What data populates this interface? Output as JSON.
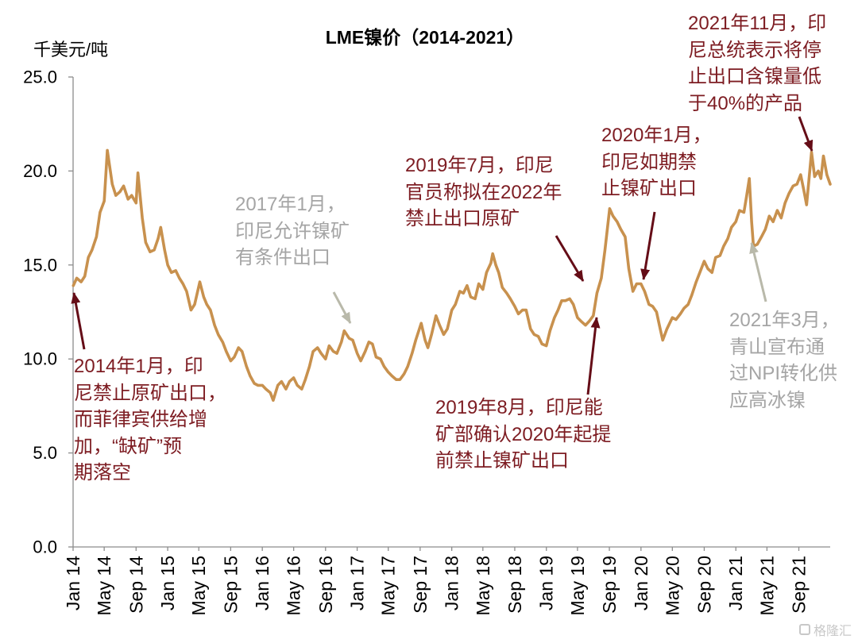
{
  "chart_data": {
    "type": "line",
    "title": "LME镍价（2014-2021）",
    "ylabel": "千美元/吨",
    "xlabel": "",
    "ylim": [
      0,
      25
    ],
    "xlim": [
      "2014-01-01",
      "2021-12-31"
    ],
    "grid": false,
    "yticks": [
      0,
      5,
      10,
      15,
      20,
      25
    ],
    "ytick_labels": [
      "0.0",
      "5.0",
      "10.0",
      "15.0",
      "20.0",
      "25.0"
    ],
    "xticks": [
      {
        "date": "2014-01-01",
        "label": "Jan 14"
      },
      {
        "date": "2014-05-01",
        "label": "May 14"
      },
      {
        "date": "2014-09-01",
        "label": "Sep 14"
      },
      {
        "date": "2015-01-01",
        "label": "Jan 15"
      },
      {
        "date": "2015-05-01",
        "label": "May 15"
      },
      {
        "date": "2015-09-01",
        "label": "Sep 15"
      },
      {
        "date": "2016-01-01",
        "label": "Jan 16"
      },
      {
        "date": "2016-05-01",
        "label": "May 16"
      },
      {
        "date": "2016-09-01",
        "label": "Sep 16"
      },
      {
        "date": "2017-01-01",
        "label": "Jan 17"
      },
      {
        "date": "2017-05-01",
        "label": "May 17"
      },
      {
        "date": "2017-09-01",
        "label": "Sep 17"
      },
      {
        "date": "2018-01-01",
        "label": "Jan 18"
      },
      {
        "date": "2018-05-01",
        "label": "May 18"
      },
      {
        "date": "2018-09-01",
        "label": "Sep 18"
      },
      {
        "date": "2019-01-01",
        "label": "Jan 19"
      },
      {
        "date": "2019-05-01",
        "label": "May 19"
      },
      {
        "date": "2019-09-01",
        "label": "Sep 19"
      },
      {
        "date": "2020-01-01",
        "label": "Jan 20"
      },
      {
        "date": "2020-05-01",
        "label": "May 20"
      },
      {
        "date": "2020-09-01",
        "label": "Sep 20"
      },
      {
        "date": "2021-01-01",
        "label": "Jan 21"
      },
      {
        "date": "2021-05-01",
        "label": "May 21"
      },
      {
        "date": "2021-09-01",
        "label": "Sep 21"
      }
    ],
    "series": [
      {
        "color": "#C8914E",
        "points": [
          [
            "2014-01-02",
            13.9
          ],
          [
            "2014-01-15",
            14.3
          ],
          [
            "2014-02-01",
            14.1
          ],
          [
            "2014-02-15",
            14.4
          ],
          [
            "2014-03-01",
            15.4
          ],
          [
            "2014-03-15",
            15.8
          ],
          [
            "2014-04-01",
            16.5
          ],
          [
            "2014-04-15",
            17.8
          ],
          [
            "2014-05-01",
            18.4
          ],
          [
            "2014-05-13",
            21.1
          ],
          [
            "2014-06-01",
            19.3
          ],
          [
            "2014-06-15",
            18.7
          ],
          [
            "2014-07-01",
            18.9
          ],
          [
            "2014-07-15",
            19.2
          ],
          [
            "2014-08-01",
            18.5
          ],
          [
            "2014-08-15",
            18.7
          ],
          [
            "2014-09-01",
            18.3
          ],
          [
            "2014-09-08",
            19.9
          ],
          [
            "2014-09-25",
            17.5
          ],
          [
            "2014-10-08",
            16.2
          ],
          [
            "2014-10-25",
            15.7
          ],
          [
            "2014-11-10",
            15.8
          ],
          [
            "2014-11-25",
            16.4
          ],
          [
            "2014-12-05",
            17.0
          ],
          [
            "2014-12-20",
            15.8
          ],
          [
            "2015-01-01",
            15.0
          ],
          [
            "2015-01-15",
            14.6
          ],
          [
            "2015-02-01",
            14.7
          ],
          [
            "2015-02-15",
            14.3
          ],
          [
            "2015-03-01",
            14.0
          ],
          [
            "2015-03-15",
            13.6
          ],
          [
            "2015-04-01",
            12.6
          ],
          [
            "2015-04-15",
            12.9
          ],
          [
            "2015-05-05",
            14.1
          ],
          [
            "2015-05-20",
            13.3
          ],
          [
            "2015-06-01",
            12.9
          ],
          [
            "2015-06-15",
            12.6
          ],
          [
            "2015-07-01",
            11.8
          ],
          [
            "2015-07-15",
            11.3
          ],
          [
            "2015-08-01",
            10.9
          ],
          [
            "2015-08-15",
            10.4
          ],
          [
            "2015-09-01",
            9.9
          ],
          [
            "2015-09-15",
            10.1
          ],
          [
            "2015-10-01",
            10.6
          ],
          [
            "2015-10-15",
            10.4
          ],
          [
            "2015-11-01",
            9.6
          ],
          [
            "2015-11-15",
            9.1
          ],
          [
            "2015-12-01",
            8.7
          ],
          [
            "2015-12-15",
            8.6
          ],
          [
            "2016-01-01",
            8.6
          ],
          [
            "2016-01-15",
            8.4
          ],
          [
            "2016-02-01",
            8.2
          ],
          [
            "2016-02-12",
            7.8
          ],
          [
            "2016-03-01",
            8.6
          ],
          [
            "2016-03-15",
            8.8
          ],
          [
            "2016-04-01",
            8.4
          ],
          [
            "2016-04-15",
            8.8
          ],
          [
            "2016-05-01",
            9.0
          ],
          [
            "2016-05-15",
            8.6
          ],
          [
            "2016-06-01",
            8.4
          ],
          [
            "2016-06-15",
            8.9
          ],
          [
            "2016-07-01",
            9.6
          ],
          [
            "2016-07-15",
            10.4
          ],
          [
            "2016-08-01",
            10.6
          ],
          [
            "2016-08-15",
            10.3
          ],
          [
            "2016-09-01",
            10.0
          ],
          [
            "2016-09-15",
            10.7
          ],
          [
            "2016-10-01",
            10.4
          ],
          [
            "2016-10-15",
            10.3
          ],
          [
            "2016-11-01",
            10.9
          ],
          [
            "2016-11-12",
            11.5
          ],
          [
            "2016-12-01",
            11.1
          ],
          [
            "2016-12-15",
            11.0
          ],
          [
            "2017-01-01",
            10.3
          ],
          [
            "2017-01-15",
            9.9
          ],
          [
            "2017-02-01",
            10.4
          ],
          [
            "2017-02-15",
            10.9
          ],
          [
            "2017-03-01",
            10.8
          ],
          [
            "2017-03-15",
            10.1
          ],
          [
            "2017-04-01",
            10.0
          ],
          [
            "2017-04-15",
            9.6
          ],
          [
            "2017-05-01",
            9.3
          ],
          [
            "2017-05-15",
            9.1
          ],
          [
            "2017-06-01",
            8.9
          ],
          [
            "2017-06-15",
            8.9
          ],
          [
            "2017-07-01",
            9.2
          ],
          [
            "2017-07-15",
            9.6
          ],
          [
            "2017-08-01",
            10.3
          ],
          [
            "2017-08-15",
            11.0
          ],
          [
            "2017-09-05",
            11.9
          ],
          [
            "2017-09-20",
            11.0
          ],
          [
            "2017-10-01",
            10.6
          ],
          [
            "2017-10-15",
            11.3
          ],
          [
            "2017-11-01",
            12.3
          ],
          [
            "2017-11-15",
            11.8
          ],
          [
            "2017-12-01",
            11.3
          ],
          [
            "2017-12-15",
            11.6
          ],
          [
            "2018-01-01",
            12.6
          ],
          [
            "2018-01-15",
            12.9
          ],
          [
            "2018-02-01",
            13.6
          ],
          [
            "2018-02-15",
            13.5
          ],
          [
            "2018-03-01",
            13.9
          ],
          [
            "2018-03-15",
            13.3
          ],
          [
            "2018-04-01",
            13.2
          ],
          [
            "2018-04-15",
            14.0
          ],
          [
            "2018-05-01",
            13.7
          ],
          [
            "2018-05-15",
            14.6
          ],
          [
            "2018-06-01",
            15.1
          ],
          [
            "2018-06-08",
            15.6
          ],
          [
            "2018-06-20",
            15.0
          ],
          [
            "2018-07-01",
            14.6
          ],
          [
            "2018-07-15",
            13.8
          ],
          [
            "2018-08-01",
            13.5
          ],
          [
            "2018-08-15",
            13.2
          ],
          [
            "2018-09-01",
            12.8
          ],
          [
            "2018-09-15",
            12.4
          ],
          [
            "2018-10-01",
            12.6
          ],
          [
            "2018-10-15",
            12.6
          ],
          [
            "2018-11-01",
            11.6
          ],
          [
            "2018-11-15",
            11.3
          ],
          [
            "2018-12-01",
            11.2
          ],
          [
            "2018-12-15",
            10.8
          ],
          [
            "2019-01-01",
            10.7
          ],
          [
            "2019-01-15",
            11.5
          ],
          [
            "2019-02-01",
            12.2
          ],
          [
            "2019-02-15",
            12.6
          ],
          [
            "2019-03-01",
            13.1
          ],
          [
            "2019-03-15",
            13.1
          ],
          [
            "2019-04-01",
            13.2
          ],
          [
            "2019-04-15",
            12.9
          ],
          [
            "2019-05-01",
            12.2
          ],
          [
            "2019-05-15",
            12.0
          ],
          [
            "2019-06-01",
            11.8
          ],
          [
            "2019-06-15",
            12.0
          ],
          [
            "2019-07-01",
            12.3
          ],
          [
            "2019-07-15",
            13.5
          ],
          [
            "2019-08-01",
            14.3
          ],
          [
            "2019-08-15",
            15.8
          ],
          [
            "2019-09-02",
            18.0
          ],
          [
            "2019-09-15",
            17.6
          ],
          [
            "2019-10-01",
            17.3
          ],
          [
            "2019-10-15",
            16.9
          ],
          [
            "2019-11-01",
            16.5
          ],
          [
            "2019-11-15",
            14.8
          ],
          [
            "2019-12-01",
            13.6
          ],
          [
            "2019-12-15",
            14.0
          ],
          [
            "2020-01-01",
            14.0
          ],
          [
            "2020-01-15",
            13.6
          ],
          [
            "2020-02-01",
            12.9
          ],
          [
            "2020-02-15",
            12.8
          ],
          [
            "2020-03-01",
            12.5
          ],
          [
            "2020-03-15",
            11.6
          ],
          [
            "2020-03-25",
            11.0
          ],
          [
            "2020-04-10",
            11.6
          ],
          [
            "2020-05-01",
            12.2
          ],
          [
            "2020-05-15",
            12.1
          ],
          [
            "2020-06-01",
            12.4
          ],
          [
            "2020-06-15",
            12.7
          ],
          [
            "2020-07-01",
            12.9
          ],
          [
            "2020-07-15",
            13.4
          ],
          [
            "2020-08-01",
            14.1
          ],
          [
            "2020-08-15",
            14.6
          ],
          [
            "2020-09-01",
            15.2
          ],
          [
            "2020-09-15",
            14.8
          ],
          [
            "2020-10-01",
            14.6
          ],
          [
            "2020-10-15",
            15.4
          ],
          [
            "2020-11-01",
            15.5
          ],
          [
            "2020-11-15",
            16.0
          ],
          [
            "2020-12-01",
            16.4
          ],
          [
            "2020-12-15",
            17.0
          ],
          [
            "2021-01-01",
            17.3
          ],
          [
            "2021-01-15",
            17.9
          ],
          [
            "2021-02-01",
            17.8
          ],
          [
            "2021-02-12",
            18.7
          ],
          [
            "2021-02-22",
            19.6
          ],
          [
            "2021-03-03",
            17.3
          ],
          [
            "2021-03-10",
            16.0
          ],
          [
            "2021-03-25",
            16.1
          ],
          [
            "2021-04-10",
            16.5
          ],
          [
            "2021-04-25",
            16.9
          ],
          [
            "2021-05-10",
            17.6
          ],
          [
            "2021-05-25",
            17.3
          ],
          [
            "2021-06-10",
            17.9
          ],
          [
            "2021-06-25",
            17.5
          ],
          [
            "2021-07-10",
            18.3
          ],
          [
            "2021-07-25",
            18.8
          ],
          [
            "2021-08-10",
            19.2
          ],
          [
            "2021-08-25",
            19.3
          ],
          [
            "2021-09-08",
            19.8
          ],
          [
            "2021-09-20",
            19.0
          ],
          [
            "2021-10-01",
            18.2
          ],
          [
            "2021-10-20",
            21.0
          ],
          [
            "2021-11-01",
            19.7
          ],
          [
            "2021-11-15",
            20.0
          ],
          [
            "2021-11-25",
            19.6
          ],
          [
            "2021-12-05",
            20.8
          ],
          [
            "2021-12-18",
            19.8
          ],
          [
            "2021-12-31",
            19.3
          ]
        ]
      }
    ],
    "annotations": [
      {
        "color": "#7D1C22",
        "lines": [
          "2014年1月，印",
          "尼禁止原矿出口，",
          "而菲律宾供给增",
          "加，“缺矿”预",
          "期落空"
        ]
      },
      {
        "color": "#A5A5A5",
        "lines": [
          "2017年1月，",
          "印尼允许镍矿",
          "有条件出口"
        ]
      },
      {
        "color": "#7D1C22",
        "lines": [
          "2019年7月，印尼",
          "官员称拟在2022年",
          "禁止出口原矿"
        ]
      },
      {
        "color": "#7D1C22",
        "lines": [
          "2019年8月，印尼能",
          "矿部确认2020年起提",
          "前禁止镍矿出口"
        ]
      },
      {
        "color": "#7D1C22",
        "lines": [
          "2020年1月，",
          "印尼如期禁",
          "止镍矿出口"
        ]
      },
      {
        "color": "#7D1C22",
        "lines": [
          "2021年11月，印",
          "尼总统表示将停",
          "止出口含镍量低",
          "于40%的产品"
        ]
      },
      {
        "color": "#A5A5A5",
        "lines": [
          "2021年3月，",
          "青山宣布通",
          "过NPI转化供",
          "应高冰镍"
        ]
      }
    ]
  },
  "colors": {
    "line": "#C8914E",
    "axis": "#8C8C8C",
    "arrow_red": "#650D17",
    "arrow_gray": "#B9B9AA"
  },
  "watermark": "格隆汇"
}
